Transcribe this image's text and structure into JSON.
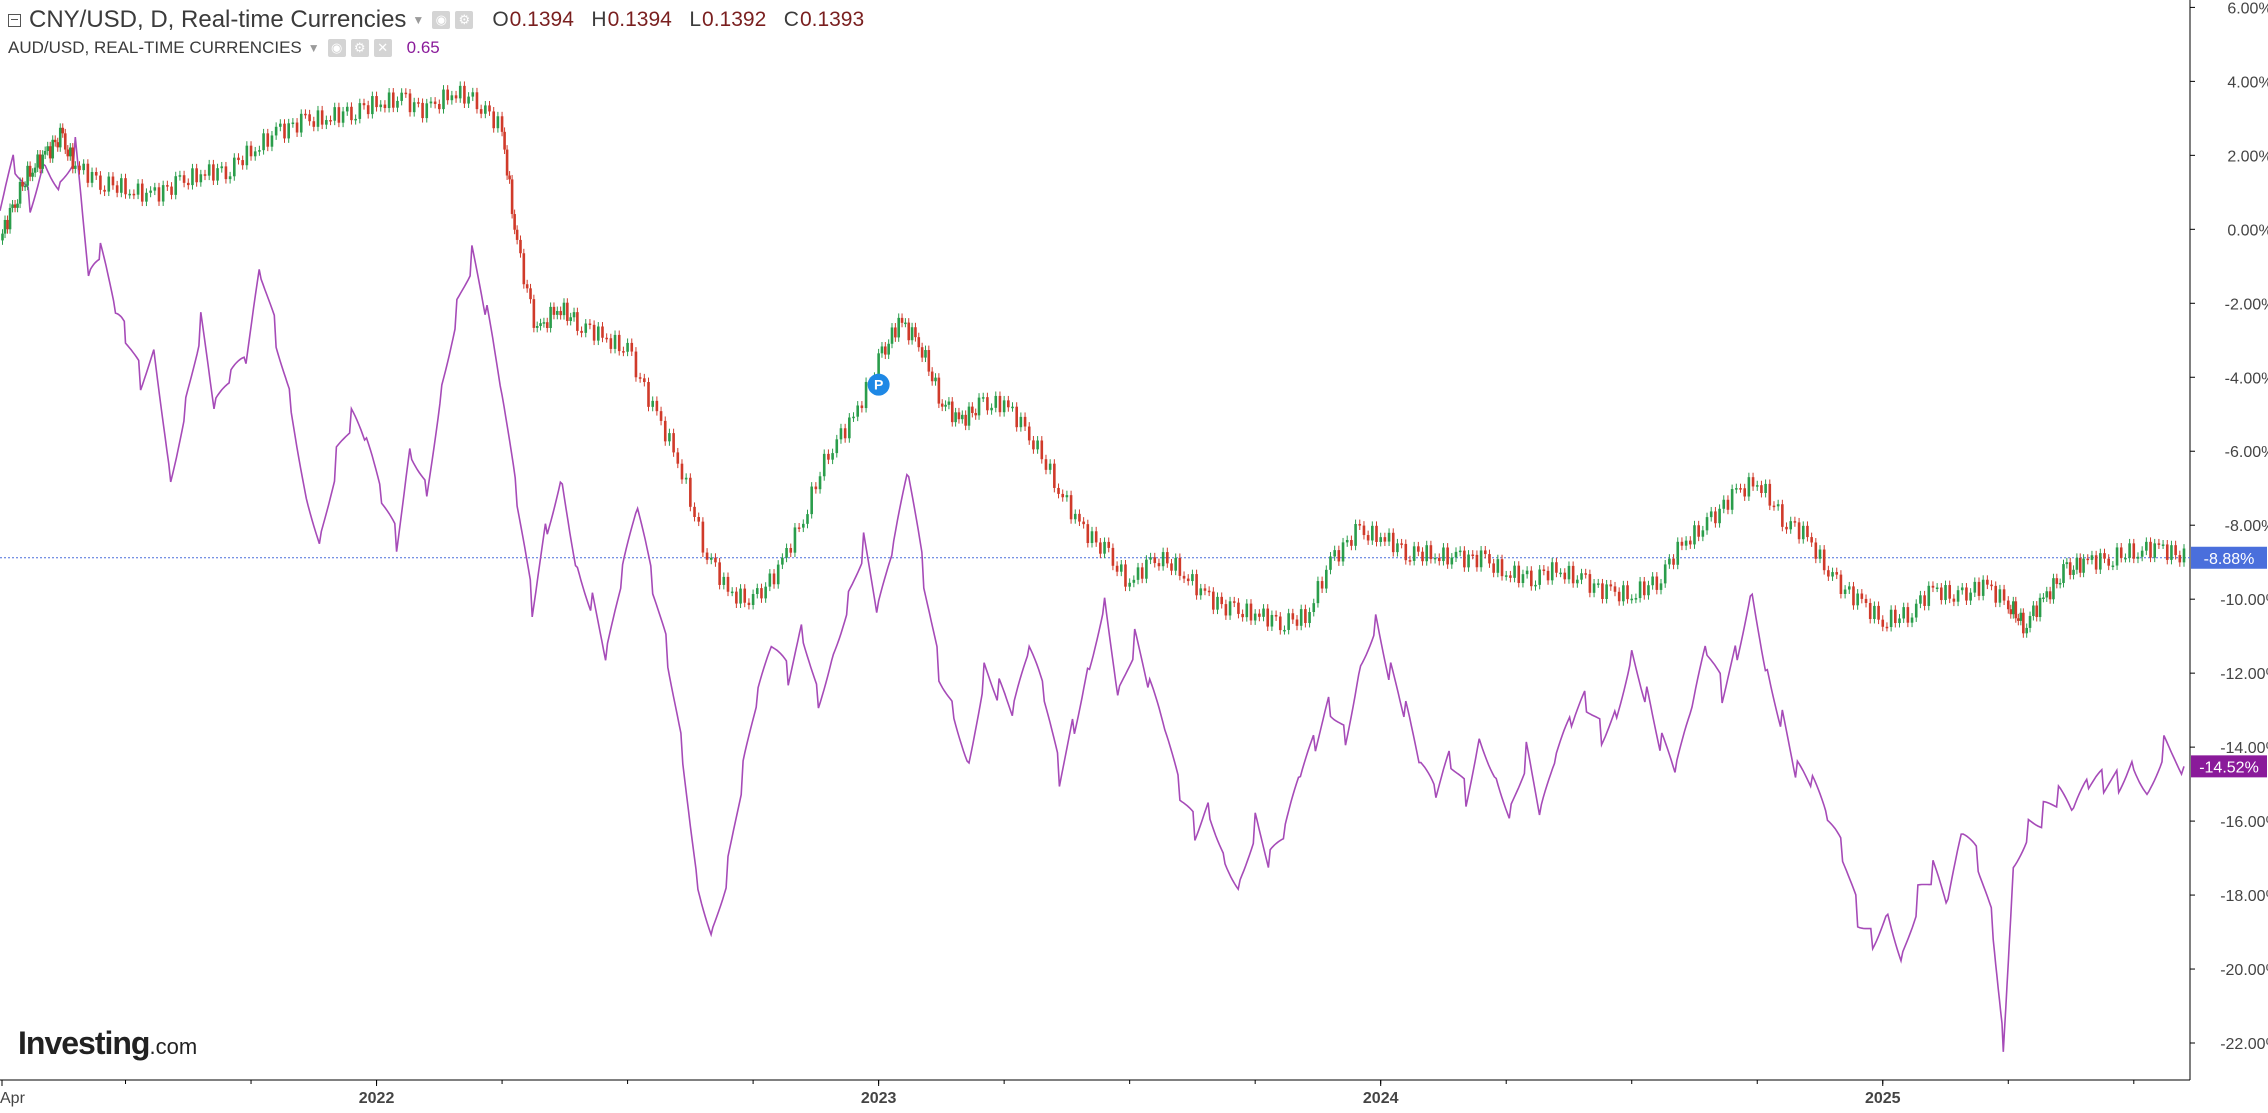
{
  "legend_main": {
    "title": "CNY/USD, D, Real-time Currencies",
    "o_key": "O",
    "o_val": "0.1394",
    "h_key": "H",
    "h_val": "0.1394",
    "l_key": "L",
    "l_val": "0.1392",
    "c_key": "C",
    "c_val": "0.1393"
  },
  "legend_sub": {
    "title": "AUD/USD, REAL-TIME CURRENCIES",
    "value": "0.65"
  },
  "logo": {
    "text": "Investing",
    "suffix": ".com"
  },
  "chart_data": {
    "type": "line",
    "ylim": [
      -23,
      6.2
    ],
    "y_ticks": [
      6,
      4,
      2,
      0,
      -2,
      -4,
      -6,
      -8,
      -10,
      -12,
      -14,
      -16,
      -18,
      -20,
      -22
    ],
    "y_tick_labels": [
      "6.00%",
      "4.00%",
      "2.00%",
      "0.00%",
      "-2.00%",
      "-4.00%",
      "-6.00%",
      "-8.00%",
      "-10.00%",
      "-12.00%",
      "-14.00%",
      "-16.00%",
      "-18.00%",
      "-20.00%",
      "-22.00%"
    ],
    "x_tick_labels": [
      {
        "label": "Apr",
        "t": 2021.25
      },
      {
        "label": "2022",
        "t": 2022.0
      },
      {
        "label": "2023",
        "t": 2023.0
      },
      {
        "label": "2024",
        "t": 2024.0
      },
      {
        "label": "2025",
        "t": 2025.0
      }
    ],
    "xlim": [
      2021.25,
      2025.6
    ],
    "series": [
      {
        "name": "CNY/USD",
        "style": "candles",
        "color_up": "#2a9d4b",
        "color_down": "#d03a2a",
        "last_label": "-8.88%",
        "last_value": -8.88,
        "label_color": "#4a6fdc",
        "points": [
          [
            2021.25,
            -0.3
          ],
          [
            2021.28,
            0.8
          ],
          [
            2021.31,
            1.6
          ],
          [
            2021.34,
            2.0
          ],
          [
            2021.37,
            2.5
          ],
          [
            2021.4,
            1.7
          ],
          [
            2021.45,
            1.3
          ],
          [
            2021.5,
            1.1
          ],
          [
            2021.55,
            0.9
          ],
          [
            2021.6,
            1.2
          ],
          [
            2021.65,
            1.5
          ],
          [
            2021.7,
            1.6
          ],
          [
            2021.75,
            2.1
          ],
          [
            2021.8,
            2.6
          ],
          [
            2021.85,
            2.9
          ],
          [
            2021.9,
            3.0
          ],
          [
            2021.95,
            3.2
          ],
          [
            2022.0,
            3.4
          ],
          [
            2022.05,
            3.5
          ],
          [
            2022.1,
            3.2
          ],
          [
            2022.15,
            3.7
          ],
          [
            2022.2,
            3.5
          ],
          [
            2022.25,
            2.7
          ],
          [
            2022.28,
            -0.5
          ],
          [
            2022.32,
            -2.8
          ],
          [
            2022.36,
            -2.1
          ],
          [
            2022.4,
            -2.5
          ],
          [
            2022.45,
            -2.9
          ],
          [
            2022.5,
            -3.3
          ],
          [
            2022.55,
            -4.8
          ],
          [
            2022.6,
            -6.2
          ],
          [
            2022.65,
            -8.5
          ],
          [
            2022.7,
            -9.8
          ],
          [
            2022.75,
            -10.1
          ],
          [
            2022.8,
            -9.2
          ],
          [
            2022.85,
            -7.8
          ],
          [
            2022.9,
            -6.0
          ],
          [
            2022.95,
            -5.1
          ],
          [
            2023.0,
            -3.6
          ],
          [
            2023.04,
            -2.5
          ],
          [
            2023.08,
            -3.0
          ],
          [
            2023.12,
            -4.5
          ],
          [
            2023.16,
            -5.2
          ],
          [
            2023.2,
            -4.8
          ],
          [
            2023.25,
            -4.7
          ],
          [
            2023.3,
            -5.5
          ],
          [
            2023.35,
            -6.8
          ],
          [
            2023.4,
            -8.0
          ],
          [
            2023.45,
            -8.7
          ],
          [
            2023.5,
            -9.6
          ],
          [
            2023.55,
            -8.8
          ],
          [
            2023.6,
            -9.2
          ],
          [
            2023.65,
            -9.9
          ],
          [
            2023.7,
            -10.3
          ],
          [
            2023.75,
            -10.4
          ],
          [
            2023.8,
            -10.6
          ],
          [
            2023.85,
            -10.5
          ],
          [
            2023.9,
            -9.0
          ],
          [
            2023.95,
            -8.2
          ],
          [
            2024.0,
            -8.3
          ],
          [
            2024.05,
            -8.7
          ],
          [
            2024.1,
            -8.8
          ],
          [
            2024.15,
            -8.9
          ],
          [
            2024.2,
            -8.9
          ],
          [
            2024.25,
            -9.3
          ],
          [
            2024.3,
            -9.4
          ],
          [
            2024.35,
            -9.2
          ],
          [
            2024.4,
            -9.5
          ],
          [
            2024.45,
            -9.8
          ],
          [
            2024.5,
            -9.9
          ],
          [
            2024.55,
            -9.5
          ],
          [
            2024.6,
            -8.5
          ],
          [
            2024.65,
            -8.0
          ],
          [
            2024.7,
            -7.2
          ],
          [
            2024.75,
            -6.8
          ],
          [
            2024.8,
            -7.8
          ],
          [
            2024.85,
            -8.3
          ],
          [
            2024.9,
            -9.5
          ],
          [
            2024.95,
            -10.0
          ],
          [
            2025.0,
            -10.6
          ],
          [
            2025.05,
            -10.4
          ],
          [
            2025.1,
            -9.7
          ],
          [
            2025.15,
            -10.0
          ],
          [
            2025.2,
            -9.6
          ],
          [
            2025.25,
            -10.1
          ],
          [
            2025.28,
            -10.7
          ],
          [
            2025.32,
            -10.0
          ],
          [
            2025.36,
            -9.3
          ],
          [
            2025.4,
            -9.0
          ],
          [
            2025.45,
            -8.9
          ],
          [
            2025.5,
            -8.7
          ],
          [
            2025.55,
            -8.6
          ],
          [
            2025.6,
            -8.88
          ]
        ]
      },
      {
        "name": "AUD/USD",
        "style": "line",
        "color": "#a64bb8",
        "last_label": "-14.52%",
        "last_value": -14.52,
        "label_color": "#8a1a9a",
        "points": [
          [
            2021.25,
            0.5
          ],
          [
            2021.28,
            1.8
          ],
          [
            2021.31,
            0.9
          ],
          [
            2021.34,
            2.1
          ],
          [
            2021.37,
            1.4
          ],
          [
            2021.4,
            2.3
          ],
          [
            2021.43,
            -1.5
          ],
          [
            2021.45,
            -0.8
          ],
          [
            2021.48,
            -2.5
          ],
          [
            2021.5,
            -3.0
          ],
          [
            2021.53,
            -4.0
          ],
          [
            2021.56,
            -3.2
          ],
          [
            2021.59,
            -6.5
          ],
          [
            2021.62,
            -4.5
          ],
          [
            2021.65,
            -2.5
          ],
          [
            2021.68,
            -5.0
          ],
          [
            2021.71,
            -4.2
          ],
          [
            2021.74,
            -3.8
          ],
          [
            2021.77,
            -1.2
          ],
          [
            2021.8,
            -2.8
          ],
          [
            2021.83,
            -4.5
          ],
          [
            2021.86,
            -7.0
          ],
          [
            2021.89,
            -8.2
          ],
          [
            2021.92,
            -6.2
          ],
          [
            2021.95,
            -5.3
          ],
          [
            2021.98,
            -6.0
          ],
          [
            2022.01,
            -7.5
          ],
          [
            2022.04,
            -8.5
          ],
          [
            2022.07,
            -5.8
          ],
          [
            2022.1,
            -6.8
          ],
          [
            2022.13,
            -4.0
          ],
          [
            2022.16,
            -2.0
          ],
          [
            2022.19,
            -0.8
          ],
          [
            2022.22,
            -2.5
          ],
          [
            2022.25,
            -4.8
          ],
          [
            2022.28,
            -7.5
          ],
          [
            2022.31,
            -10.2
          ],
          [
            2022.34,
            -7.8
          ],
          [
            2022.37,
            -6.5
          ],
          [
            2022.4,
            -9.0
          ],
          [
            2022.43,
            -10.0
          ],
          [
            2022.46,
            -11.6
          ],
          [
            2022.49,
            -9.5
          ],
          [
            2022.52,
            -7.8
          ],
          [
            2022.55,
            -9.8
          ],
          [
            2022.58,
            -11.5
          ],
          [
            2022.61,
            -14.0
          ],
          [
            2022.64,
            -17.5
          ],
          [
            2022.67,
            -18.8
          ],
          [
            2022.7,
            -17.2
          ],
          [
            2022.73,
            -14.8
          ],
          [
            2022.76,
            -12.8
          ],
          [
            2022.79,
            -11.5
          ],
          [
            2022.82,
            -12.2
          ],
          [
            2022.85,
            -10.8
          ],
          [
            2022.88,
            -12.5
          ],
          [
            2022.91,
            -11.2
          ],
          [
            2022.94,
            -9.8
          ],
          [
            2022.97,
            -8.5
          ],
          [
            2023.0,
            -10.5
          ],
          [
            2023.03,
            -8.8
          ],
          [
            2023.06,
            -6.8
          ],
          [
            2023.09,
            -9.5
          ],
          [
            2023.12,
            -11.8
          ],
          [
            2023.15,
            -12.8
          ],
          [
            2023.18,
            -14.2
          ],
          [
            2023.21,
            -11.8
          ],
          [
            2023.24,
            -12.5
          ],
          [
            2023.27,
            -13.2
          ],
          [
            2023.3,
            -11.6
          ],
          [
            2023.33,
            -12.8
          ],
          [
            2023.36,
            -14.8
          ],
          [
            2023.39,
            -13.2
          ],
          [
            2023.42,
            -11.5
          ],
          [
            2023.45,
            -9.8
          ],
          [
            2023.48,
            -12.5
          ],
          [
            2023.51,
            -11.2
          ],
          [
            2023.54,
            -12.6
          ],
          [
            2023.57,
            -13.8
          ],
          [
            2023.6,
            -15.4
          ],
          [
            2023.63,
            -16.2
          ],
          [
            2023.66,
            -15.5
          ],
          [
            2023.69,
            -16.8
          ],
          [
            2023.72,
            -17.5
          ],
          [
            2023.75,
            -16.0
          ],
          [
            2023.78,
            -17.2
          ],
          [
            2023.81,
            -16.5
          ],
          [
            2023.84,
            -15.0
          ],
          [
            2023.87,
            -14.0
          ],
          [
            2023.9,
            -12.8
          ],
          [
            2023.93,
            -13.5
          ],
          [
            2023.96,
            -11.5
          ],
          [
            2023.99,
            -10.4
          ],
          [
            2024.02,
            -12.0
          ],
          [
            2024.05,
            -13.2
          ],
          [
            2024.08,
            -14.8
          ],
          [
            2024.11,
            -15.5
          ],
          [
            2024.14,
            -14.4
          ],
          [
            2024.17,
            -15.2
          ],
          [
            2024.2,
            -13.5
          ],
          [
            2024.23,
            -14.6
          ],
          [
            2024.26,
            -15.6
          ],
          [
            2024.29,
            -14.2
          ],
          [
            2024.32,
            -16.0
          ],
          [
            2024.35,
            -14.5
          ],
          [
            2024.38,
            -13.5
          ],
          [
            2024.41,
            -12.8
          ],
          [
            2024.44,
            -13.5
          ],
          [
            2024.47,
            -12.8
          ],
          [
            2024.5,
            -11.2
          ],
          [
            2024.53,
            -12.5
          ],
          [
            2024.56,
            -14.0
          ],
          [
            2024.59,
            -14.8
          ],
          [
            2024.62,
            -13.2
          ],
          [
            2024.65,
            -11.5
          ],
          [
            2024.68,
            -12.5
          ],
          [
            2024.71,
            -11.2
          ],
          [
            2024.74,
            -9.5
          ],
          [
            2024.77,
            -11.8
          ],
          [
            2024.8,
            -13.2
          ],
          [
            2024.83,
            -14.8
          ],
          [
            2024.86,
            -15.2
          ],
          [
            2024.89,
            -16.2
          ],
          [
            2024.92,
            -17.0
          ],
          [
            2024.95,
            -18.5
          ],
          [
            2024.98,
            -19.0
          ],
          [
            2025.01,
            -18.2
          ],
          [
            2025.04,
            -19.5
          ],
          [
            2025.07,
            -18.0
          ],
          [
            2025.1,
            -17.5
          ],
          [
            2025.13,
            -18.5
          ],
          [
            2025.16,
            -16.5
          ],
          [
            2025.19,
            -17.2
          ],
          [
            2025.22,
            -18.8
          ],
          [
            2025.24,
            -21.8
          ],
          [
            2025.26,
            -17.0
          ],
          [
            2025.29,
            -16.0
          ],
          [
            2025.32,
            -15.8
          ],
          [
            2025.35,
            -15.5
          ],
          [
            2025.38,
            -16.0
          ],
          [
            2025.41,
            -15.2
          ],
          [
            2025.44,
            -15.0
          ],
          [
            2025.47,
            -14.8
          ],
          [
            2025.5,
            -14.2
          ],
          [
            2025.53,
            -15.0
          ],
          [
            2025.56,
            -13.8
          ],
          [
            2025.6,
            -14.52
          ]
        ]
      }
    ],
    "grid": false,
    "legend_position": "top-left"
  },
  "colors": {
    "axis": "#000000",
    "text": "#444444",
    "baseline": "#4a6fdc"
  }
}
